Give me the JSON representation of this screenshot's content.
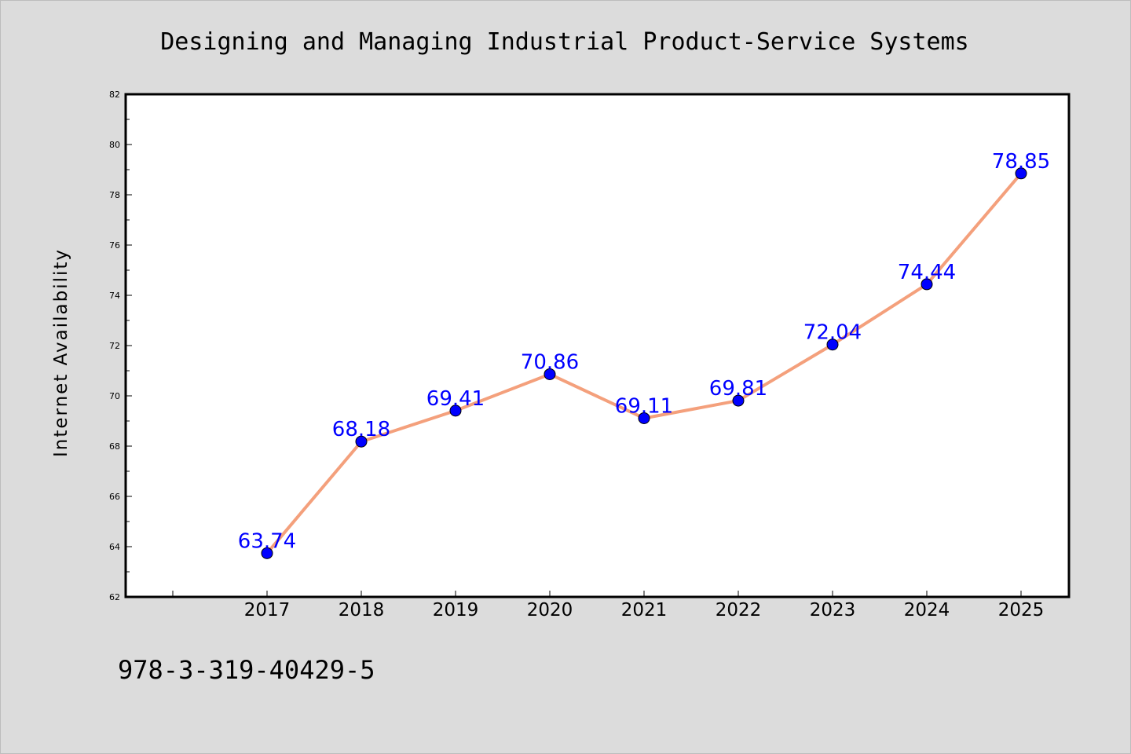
{
  "chart_data": {
    "type": "line",
    "title": "Designing and Managing Industrial Product-Service Systems",
    "xlabel": "",
    "ylabel": "Internet Availability",
    "categories": [
      "2017",
      "2018",
      "2019",
      "2020",
      "2021",
      "2022",
      "2023",
      "2024",
      "2025"
    ],
    "series": [
      {
        "values": [
          63.74,
          68.18,
          69.41,
          70.86,
          69.11,
          69.81,
          72.04,
          74.44,
          78.85
        ],
        "line_color": "#f4a07c",
        "marker_color": "#0000ff",
        "label_color": "#0000ff"
      }
    ],
    "data_labels": [
      "63.74",
      "68.18",
      "69.41",
      "70.86",
      "69.11",
      "69.81",
      "72.04",
      "74.44",
      "78.85"
    ],
    "ylim": [
      62,
      82
    ],
    "yticks": [
      "62",
      "64",
      "66",
      "68",
      "70",
      "72",
      "74",
      "76",
      "78",
      "80",
      "82"
    ],
    "grid": false,
    "legend": "none"
  },
  "footer": {
    "text": "978-3-319-40429-5"
  },
  "colors": {
    "background": "#dcdcdc",
    "plot_background": "#ffffff"
  }
}
